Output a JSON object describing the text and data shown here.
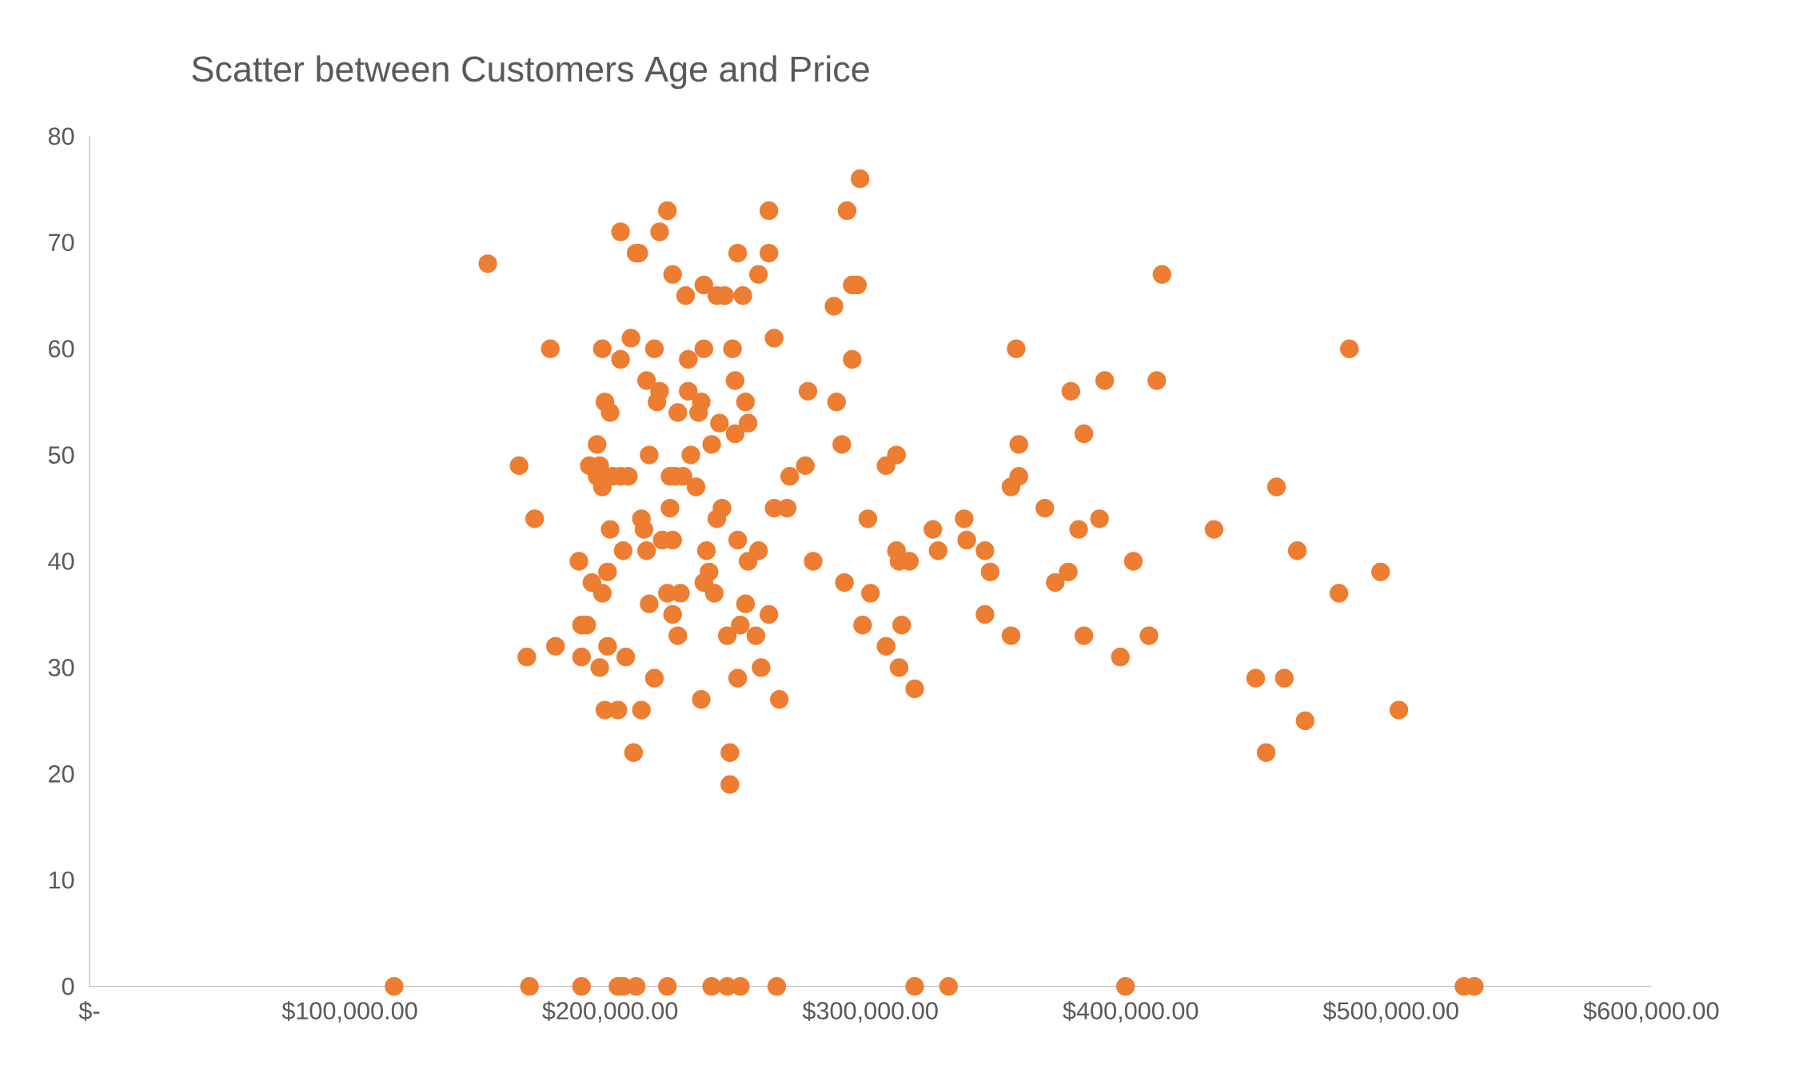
{
  "chart_data": {
    "type": "scatter",
    "title": "Scatter between Customers Age and Price",
    "x": [
      153000,
      165000,
      168000,
      171000,
      177000,
      179000,
      188000,
      189000,
      189000,
      191000,
      192000,
      193000,
      195000,
      195000,
      196000,
      196000,
      197000,
      197000,
      197000,
      198000,
      198000,
      199000,
      199000,
      200000,
      200000,
      201000,
      203000,
      204000,
      204000,
      204000,
      205000,
      206000,
      207000,
      208000,
      209000,
      210000,
      211000,
      212000,
      212000,
      213000,
      214000,
      214000,
      215000,
      215000,
      217000,
      217000,
      218000,
      219000,
      219000,
      220000,
      222000,
      222000,
      223000,
      223000,
      224000,
      224000,
      224000,
      225000,
      226000,
      226000,
      227000,
      228000,
      229000,
      230000,
      230000,
      231000,
      233000,
      234000,
      235000,
      235000,
      236000,
      236000,
      236000,
      237000,
      238000,
      239000,
      240000,
      241000,
      241000,
      242000,
      243000,
      244000,
      245000,
      246000,
      246000,
      247000,
      248000,
      248000,
      249000,
      249000,
      249000,
      250000,
      251000,
      252000,
      252000,
      253000,
      253000,
      256000,
      257000,
      257000,
      258000,
      261000,
      261000,
      261000,
      263000,
      263000,
      265000,
      268000,
      269000,
      275000,
      276000,
      278000,
      286000,
      287000,
      289000,
      290000,
      291000,
      293000,
      293000,
      295000,
      296000,
      297000,
      299000,
      300000,
      306000,
      306000,
      310000,
      310000,
      311000,
      311000,
      312000,
      315000,
      317000,
      324000,
      326000,
      336000,
      337000,
      344000,
      344000,
      346000,
      354000,
      354000,
      356000,
      357000,
      357000,
      367000,
      371000,
      376000,
      377000,
      380000,
      382000,
      382000,
      388000,
      390000,
      396000,
      401000,
      407000,
      410000,
      412000,
      432000,
      448000,
      452000,
      456000,
      459000,
      464000,
      467000,
      480000,
      484000,
      496000,
      503000,
      117000,
      169000,
      189000,
      203000,
      205000,
      210000,
      222000,
      239000,
      245000,
      250000,
      264000,
      317000,
      330000,
      398000,
      528000,
      532000
    ],
    "values": [
      68,
      49,
      31,
      44,
      60,
      32,
      40,
      31,
      34,
      34,
      49,
      38,
      51,
      48,
      30,
      49,
      37,
      60,
      47,
      55,
      26,
      39,
      32,
      43,
      54,
      48,
      26,
      71,
      59,
      48,
      41,
      31,
      48,
      61,
      22,
      69,
      69,
      26,
      44,
      43,
      57,
      41,
      36,
      50,
      60,
      29,
      55,
      56,
      71,
      42,
      37,
      73,
      45,
      48,
      67,
      42,
      35,
      48,
      33,
      54,
      37,
      48,
      65,
      56,
      59,
      50,
      47,
      54,
      55,
      27,
      66,
      60,
      38,
      41,
      39,
      51,
      37,
      65,
      44,
      53,
      45,
      65,
      33,
      22,
      19,
      60,
      52,
      57,
      69,
      42,
      29,
      34,
      65,
      36,
      55,
      53,
      40,
      33,
      41,
      67,
      30,
      73,
      69,
      35,
      61,
      45,
      27,
      45,
      48,
      49,
      56,
      40,
      64,
      55,
      51,
      38,
      73,
      66,
      59,
      66,
      76,
      34,
      44,
      37,
      32,
      49,
      50,
      41,
      30,
      40,
      34,
      40,
      28,
      43,
      41,
      44,
      42,
      41,
      35,
      39,
      47,
      33,
      60,
      51,
      48,
      45,
      38,
      39,
      56,
      43,
      52,
      33,
      44,
      57,
      31,
      40,
      33,
      57,
      67,
      43,
      29,
      22,
      47,
      29,
      41,
      25,
      37,
      60,
      39,
      26,
      0,
      0,
      0,
      0,
      0,
      0,
      0,
      0,
      0,
      0,
      0,
      0,
      0,
      0,
      0,
      0
    ],
    "color": "#ed7d31",
    "marker": "circle",
    "xlim": [
      0,
      600000
    ],
    "ylim": [
      0,
      80
    ],
    "xticks": [
      {
        "value": 0,
        "label": "$-"
      },
      {
        "value": 100000,
        "label": "$100,000.00"
      },
      {
        "value": 200000,
        "label": "$200,000.00"
      },
      {
        "value": 300000,
        "label": "$300,000.00"
      },
      {
        "value": 400000,
        "label": "$400,000.00"
      },
      {
        "value": 500000,
        "label": "$500,000.00"
      },
      {
        "value": 600000,
        "label": "$600,000.00"
      }
    ],
    "yticks": [
      0,
      10,
      20,
      30,
      40,
      50,
      60,
      70,
      80
    ]
  }
}
